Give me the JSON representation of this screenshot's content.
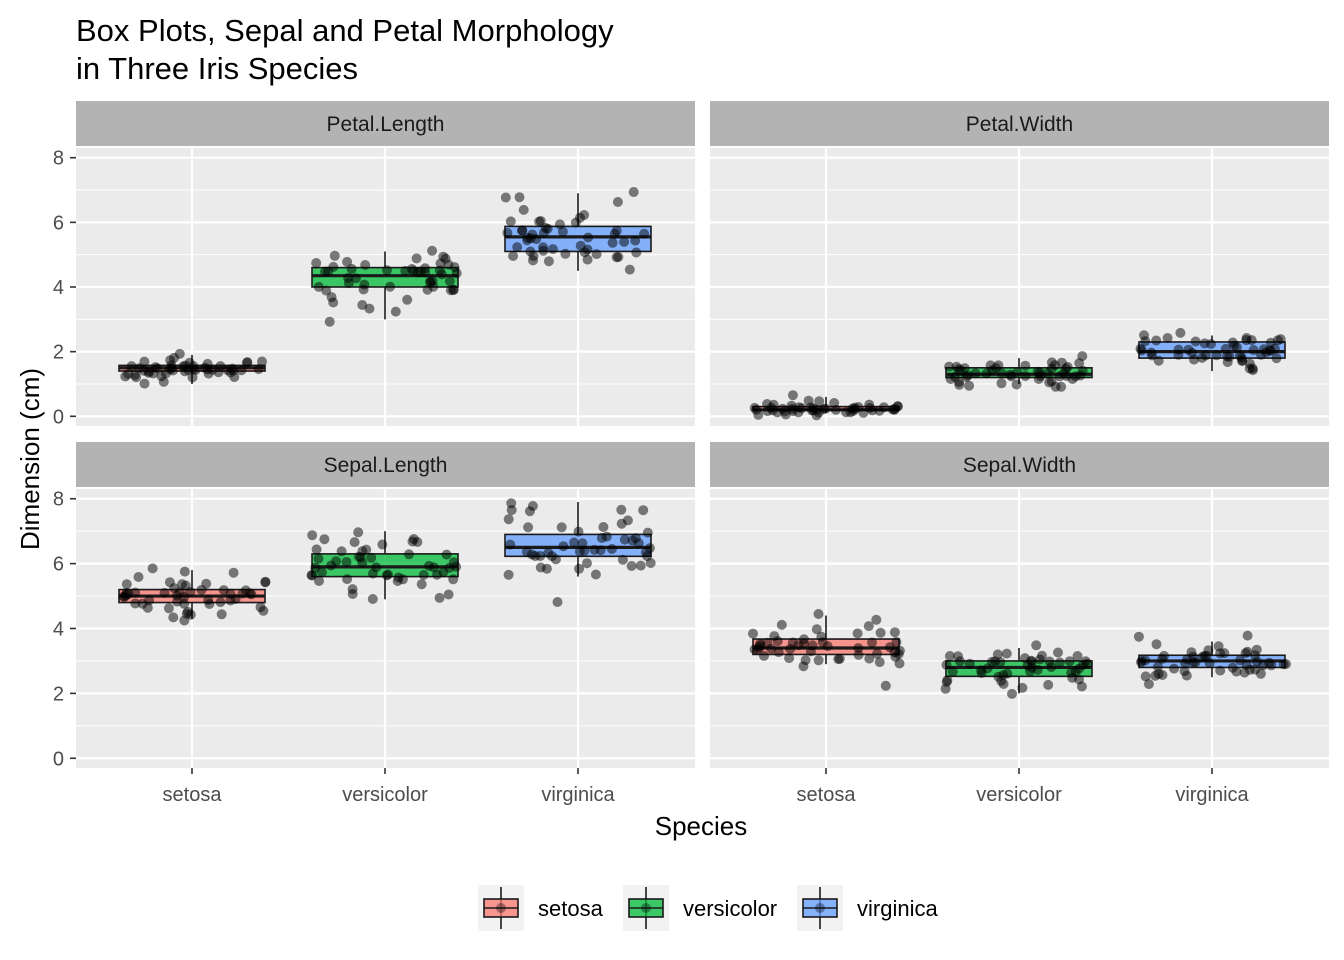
{
  "chart_data": {
    "type": "box",
    "title_lines": [
      "Box Plots, Sepal and Petal Morphology",
      "in Three Iris Species"
    ],
    "xlabel": "Species",
    "ylabel": "Dimension (cm)",
    "categories": [
      "setosa",
      "versicolor",
      "virginica"
    ],
    "ylim": [
      -0.3,
      8.3
    ],
    "yticks": [
      0,
      2,
      4,
      6,
      8
    ],
    "grid": true,
    "legend": {
      "position": "bottom",
      "entries": [
        "setosa",
        "versicolor",
        "virginica"
      ]
    },
    "colors": {
      "setosa": "#F8766D",
      "versicolor": "#00BA38",
      "virginica": "#619CFF"
    },
    "facets": [
      {
        "label": "Petal.Length",
        "boxes": [
          {
            "species": "setosa",
            "min": 1.0,
            "q1": 1.4,
            "median": 1.5,
            "q3": 1.575,
            "max": 1.9
          },
          {
            "species": "versicolor",
            "min": 3.0,
            "q1": 4.0,
            "median": 4.35,
            "q3": 4.6,
            "max": 5.1
          },
          {
            "species": "virginica",
            "min": 4.5,
            "q1": 5.1,
            "median": 5.55,
            "q3": 5.875,
            "max": 6.9
          }
        ],
        "points": {
          "setosa": [
            1.4,
            1.4,
            1.3,
            1.5,
            1.4,
            1.7,
            1.4,
            1.5,
            1.4,
            1.5,
            1.5,
            1.6,
            1.4,
            1.1,
            1.2,
            1.5,
            1.3,
            1.4,
            1.7,
            1.5,
            1.7,
            1.5,
            1.0,
            1.7,
            1.9,
            1.6,
            1.6,
            1.5,
            1.4,
            1.6,
            1.6,
            1.5,
            1.5,
            1.4,
            1.5,
            1.2,
            1.3,
            1.4,
            1.3,
            1.5,
            1.3,
            1.3,
            1.3,
            1.6,
            1.9,
            1.4,
            1.6,
            1.4,
            1.5,
            1.4
          ],
          "versicolor": [
            4.7,
            4.5,
            4.9,
            4.0,
            4.6,
            4.5,
            4.7,
            3.3,
            4.6,
            3.9,
            3.5,
            4.2,
            4.0,
            4.7,
            3.6,
            4.4,
            4.5,
            4.1,
            4.5,
            3.9,
            4.8,
            4.0,
            4.9,
            4.7,
            4.3,
            4.4,
            4.8,
            5.0,
            4.5,
            3.5,
            3.8,
            3.7,
            3.9,
            5.1,
            4.5,
            4.5,
            4.7,
            4.4,
            4.1,
            4.0,
            4.4,
            4.6,
            4.0,
            3.3,
            4.2,
            4.2,
            4.2,
            4.3,
            3.0,
            4.1
          ],
          "virginica": [
            6.0,
            5.1,
            5.9,
            5.6,
            5.8,
            6.6,
            4.5,
            6.3,
            5.8,
            6.1,
            5.1,
            5.3,
            5.5,
            5.0,
            5.1,
            5.3,
            5.5,
            6.7,
            6.9,
            5.0,
            5.7,
            4.9,
            6.7,
            4.9,
            5.7,
            6.0,
            4.8,
            4.9,
            5.6,
            5.8,
            6.1,
            6.4,
            5.6,
            5.1,
            5.6,
            6.1,
            5.6,
            5.5,
            4.8,
            5.4,
            5.6,
            5.1,
            5.1,
            5.9,
            5.7,
            5.2,
            5.0,
            5.2,
            5.4,
            5.1
          ]
        }
      },
      {
        "label": "Petal.Width",
        "boxes": [
          {
            "species": "setosa",
            "min": 0.1,
            "q1": 0.2,
            "median": 0.2,
            "q3": 0.3,
            "max": 0.6
          },
          {
            "species": "versicolor",
            "min": 1.0,
            "q1": 1.2,
            "median": 1.3,
            "q3": 1.5,
            "max": 1.8
          },
          {
            "species": "virginica",
            "min": 1.4,
            "q1": 1.8,
            "median": 2.0,
            "q3": 2.3,
            "max": 2.5
          }
        ],
        "points": {
          "setosa": [
            0.2,
            0.2,
            0.2,
            0.2,
            0.2,
            0.4,
            0.3,
            0.2,
            0.2,
            0.1,
            0.2,
            0.2,
            0.1,
            0.1,
            0.2,
            0.4,
            0.4,
            0.3,
            0.3,
            0.3,
            0.2,
            0.4,
            0.2,
            0.5,
            0.2,
            0.2,
            0.4,
            0.2,
            0.2,
            0.2,
            0.2,
            0.4,
            0.1,
            0.2,
            0.2,
            0.2,
            0.2,
            0.1,
            0.2,
            0.2,
            0.3,
            0.3,
            0.2,
            0.6,
            0.4,
            0.3,
            0.2,
            0.2,
            0.2,
            0.2
          ],
          "versicolor": [
            1.4,
            1.5,
            1.5,
            1.3,
            1.5,
            1.3,
            1.6,
            1.0,
            1.3,
            1.4,
            1.0,
            1.5,
            1.0,
            1.4,
            1.3,
            1.4,
            1.5,
            1.0,
            1.5,
            1.1,
            1.8,
            1.3,
            1.5,
            1.2,
            1.3,
            1.4,
            1.4,
            1.7,
            1.5,
            1.0,
            1.1,
            1.0,
            1.2,
            1.6,
            1.5,
            1.6,
            1.5,
            1.3,
            1.3,
            1.3,
            1.2,
            1.4,
            1.2,
            1.0,
            1.3,
            1.2,
            1.3,
            1.3,
            1.1,
            1.3
          ],
          "virginica": [
            2.5,
            1.9,
            2.1,
            1.8,
            2.2,
            2.1,
            1.7,
            1.8,
            1.8,
            2.5,
            2.0,
            1.9,
            2.1,
            2.0,
            2.4,
            2.3,
            1.8,
            2.2,
            2.3,
            1.5,
            2.3,
            2.0,
            2.0,
            1.8,
            2.1,
            1.8,
            1.8,
            1.8,
            2.1,
            1.6,
            1.9,
            2.0,
            2.2,
            1.5,
            1.4,
            2.3,
            2.4,
            1.8,
            1.8,
            2.1,
            2.4,
            2.3,
            1.9,
            2.3,
            2.5,
            2.3,
            1.9,
            2.0,
            2.3,
            1.8
          ]
        }
      },
      {
        "label": "Sepal.Length",
        "boxes": [
          {
            "species": "setosa",
            "min": 4.3,
            "q1": 4.8,
            "median": 5.0,
            "q3": 5.2,
            "max": 5.8
          },
          {
            "species": "versicolor",
            "min": 4.9,
            "q1": 5.6,
            "median": 5.9,
            "q3": 6.3,
            "max": 7.0
          },
          {
            "species": "virginica",
            "min": 5.6,
            "q1": 6.225,
            "median": 6.5,
            "q3": 6.9,
            "max": 7.9
          }
        ],
        "points": {
          "setosa": [
            5.1,
            4.9,
            4.7,
            4.6,
            5.0,
            5.4,
            4.6,
            5.0,
            4.4,
            4.9,
            5.4,
            4.8,
            4.8,
            4.3,
            5.8,
            5.7,
            5.4,
            5.1,
            5.7,
            5.1,
            5.4,
            5.1,
            4.6,
            5.1,
            4.8,
            5.0,
            5.0,
            5.2,
            5.2,
            4.7,
            4.8,
            5.4,
            5.2,
            5.5,
            4.9,
            5.0,
            5.5,
            4.9,
            4.4,
            5.1,
            5.0,
            4.5,
            4.4,
            5.0,
            5.1,
            4.8,
            5.1,
            4.6,
            5.3,
            5.0
          ],
          "versicolor": [
            7.0,
            6.4,
            6.9,
            5.5,
            6.5,
            5.7,
            6.3,
            4.9,
            6.6,
            5.2,
            5.0,
            5.9,
            6.0,
            6.1,
            5.6,
            6.7,
            5.6,
            5.8,
            6.2,
            5.6,
            5.9,
            6.1,
            6.3,
            6.1,
            6.4,
            6.6,
            6.8,
            6.7,
            6.0,
            5.7,
            5.5,
            5.5,
            5.8,
            6.0,
            5.4,
            6.0,
            6.7,
            6.3,
            5.6,
            5.5,
            5.5,
            6.1,
            5.8,
            5.0,
            5.6,
            5.7,
            5.7,
            6.2,
            5.1,
            5.7
          ],
          "virginica": [
            6.3,
            5.8,
            7.1,
            6.3,
            6.5,
            7.6,
            4.9,
            7.3,
            6.7,
            7.2,
            6.5,
            6.4,
            6.8,
            5.7,
            5.8,
            6.4,
            6.5,
            7.7,
            7.7,
            6.0,
            6.9,
            5.6,
            7.7,
            6.3,
            6.7,
            7.2,
            6.2,
            6.1,
            6.4,
            7.2,
            7.4,
            7.9,
            6.4,
            6.3,
            6.1,
            7.7,
            6.3,
            6.4,
            6.0,
            6.9,
            6.7,
            6.9,
            5.8,
            6.8,
            6.7,
            6.7,
            6.3,
            6.5,
            6.2,
            5.9
          ]
        }
      },
      {
        "label": "Sepal.Width",
        "boxes": [
          {
            "species": "setosa",
            "min": 2.9,
            "q1": 3.2,
            "median": 3.4,
            "q3": 3.675,
            "max": 4.4
          },
          {
            "species": "versicolor",
            "min": 2.0,
            "q1": 2.525,
            "median": 2.8,
            "q3": 3.0,
            "max": 3.4
          },
          {
            "species": "virginica",
            "min": 2.5,
            "q1": 2.8,
            "median": 3.0,
            "q3": 3.175,
            "max": 3.6
          }
        ],
        "points": {
          "setosa": [
            3.5,
            3.0,
            3.2,
            3.1,
            3.6,
            3.9,
            3.4,
            3.4,
            2.9,
            3.1,
            3.7,
            3.4,
            3.0,
            3.0,
            4.0,
            4.4,
            3.9,
            3.5,
            3.8,
            3.8,
            3.4,
            3.7,
            3.6,
            3.3,
            3.4,
            3.0,
            3.4,
            3.5,
            3.4,
            3.2,
            3.1,
            3.4,
            4.1,
            4.2,
            3.1,
            3.2,
            3.5,
            3.6,
            3.0,
            3.4,
            3.5,
            2.3,
            3.2,
            3.5,
            3.8,
            3.0,
            3.8,
            3.2,
            3.7,
            3.3
          ],
          "versicolor": [
            3.2,
            3.2,
            3.1,
            2.3,
            2.8,
            2.8,
            3.3,
            2.4,
            2.9,
            2.7,
            2.0,
            3.0,
            2.2,
            2.9,
            2.9,
            3.1,
            3.0,
            2.7,
            2.2,
            2.5,
            3.2,
            2.8,
            2.5,
            2.8,
            2.9,
            3.0,
            2.8,
            3.0,
            2.9,
            2.6,
            2.4,
            2.4,
            2.7,
            2.7,
            3.0,
            3.4,
            3.1,
            2.3,
            3.0,
            2.5,
            2.6,
            3.0,
            2.6,
            2.3,
            2.7,
            3.0,
            2.9,
            2.9,
            2.5,
            2.8
          ],
          "virginica": [
            3.3,
            2.7,
            3.0,
            2.9,
            3.0,
            3.0,
            2.5,
            2.9,
            2.5,
            3.6,
            3.2,
            2.7,
            3.0,
            2.5,
            2.8,
            3.2,
            3.0,
            3.8,
            2.6,
            2.2,
            3.2,
            2.8,
            2.8,
            2.7,
            3.3,
            3.2,
            2.8,
            3.0,
            2.8,
            3.0,
            2.8,
            3.8,
            2.8,
            2.8,
            2.6,
            3.0,
            3.4,
            3.1,
            3.0,
            3.1,
            3.1,
            3.1,
            2.7,
            3.2,
            3.3,
            3.0,
            2.5,
            3.0,
            3.4,
            3.0
          ]
        }
      }
    ]
  }
}
